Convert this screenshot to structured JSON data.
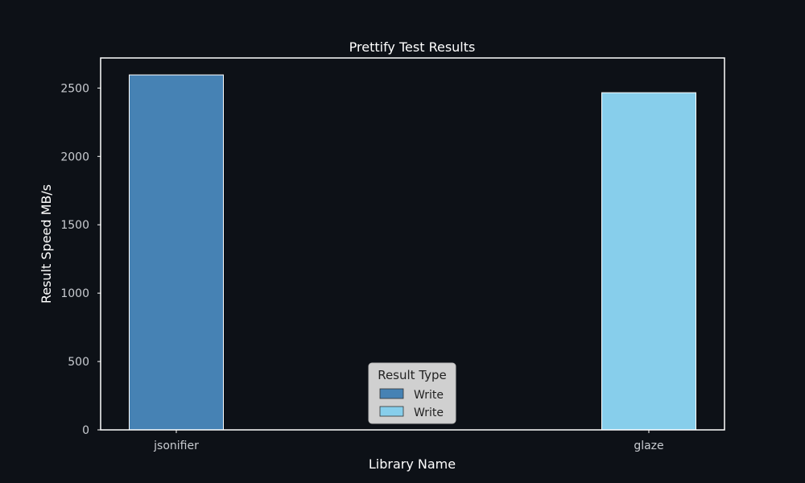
{
  "chart_data": {
    "type": "bar",
    "title": "Prettify Test Results",
    "xlabel": "Library Name",
    "ylabel": "Result Speed MB/s",
    "categories": [
      "jsonifier",
      "glaze"
    ],
    "ylim": [
      0,
      2720
    ],
    "yticks": [
      0,
      500,
      1000,
      1500,
      2000,
      2500
    ],
    "grid": false,
    "legend": {
      "title": "Result Type",
      "placement": "bottom-center",
      "entries": [
        {
          "label": "Write",
          "color": "#4682b4"
        },
        {
          "label": "Write",
          "color": "#87ceeb"
        }
      ]
    },
    "bars": [
      {
        "category": "jsonifier",
        "result_type": "Write",
        "value": 2596,
        "color": "#4682b4"
      },
      {
        "category": "glaze",
        "result_type": "Write",
        "value": 2466,
        "color": "#87ceeb"
      }
    ]
  },
  "colors": {
    "background": "#0d1117",
    "axes": "#ffffff",
    "legend_background": "#d0d0d0"
  }
}
